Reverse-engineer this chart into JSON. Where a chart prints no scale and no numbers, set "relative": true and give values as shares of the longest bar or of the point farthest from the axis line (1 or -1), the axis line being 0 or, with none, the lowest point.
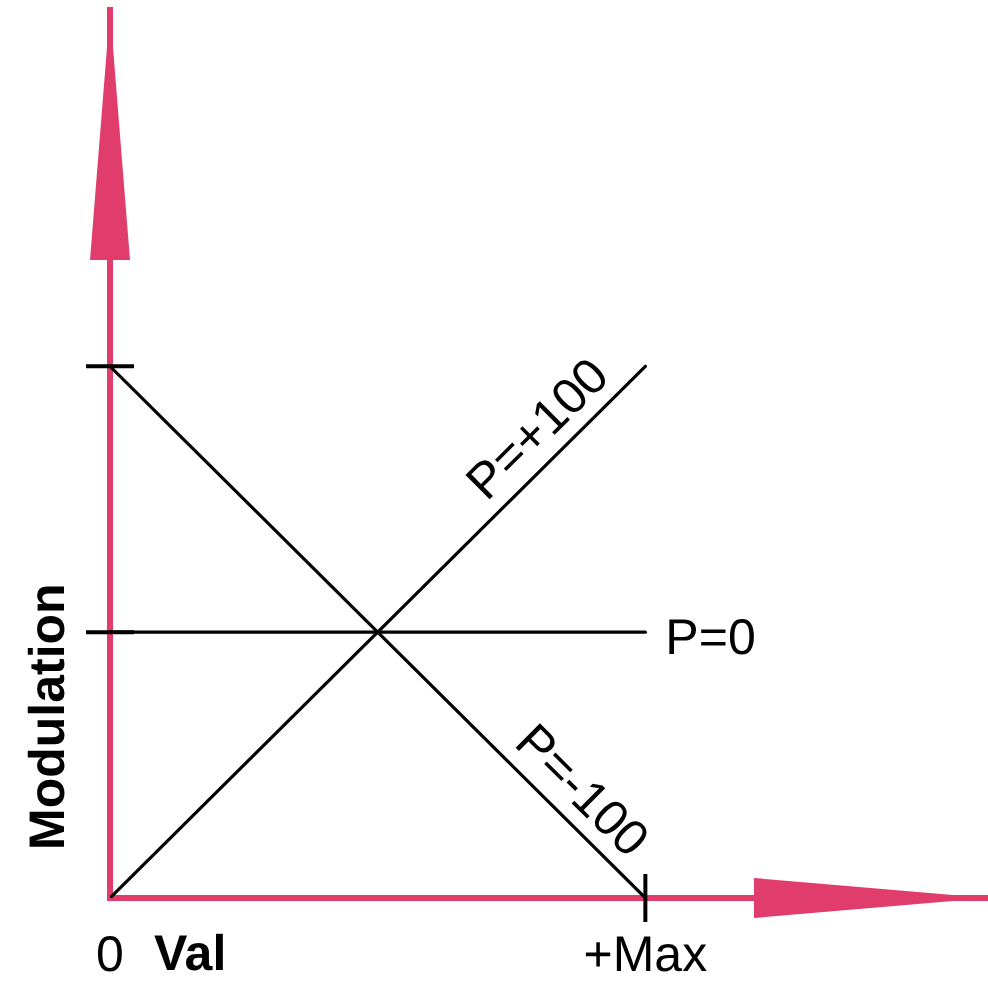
{
  "chart_data": {
    "type": "line",
    "xlabel": "Val",
    "ylabel": "Modulation",
    "categories": [
      "0",
      "+Max"
    ],
    "relative": true,
    "series": [
      {
        "name": "P=+100",
        "color": "#000000",
        "values": [
          0,
          1
        ]
      },
      {
        "name": "P=0",
        "color": "#000000",
        "values": [
          0.5,
          0.5
        ]
      },
      {
        "name": "P=-100",
        "color": "#000000",
        "values": [
          1,
          0
        ]
      }
    ],
    "grid": false,
    "legend": false,
    "marker": "none",
    "line_style": "solid"
  }
}
